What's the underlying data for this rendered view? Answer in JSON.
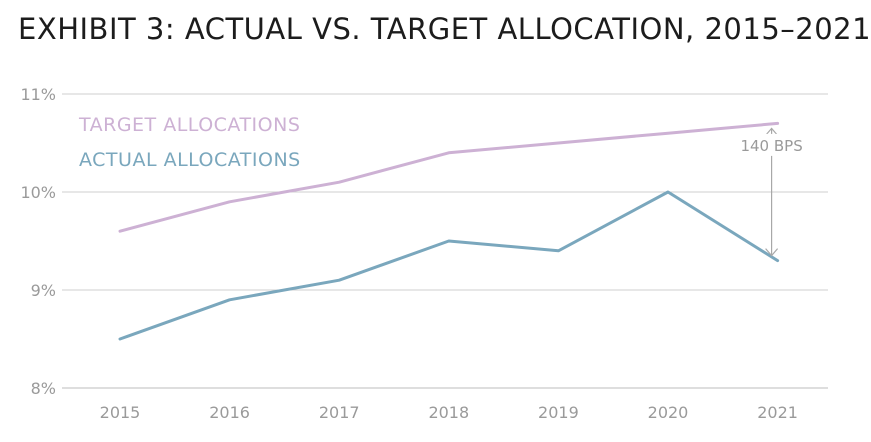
{
  "title": "EXHIBIT 3: ACTUAL VS. TARGET ALLOCATION, 2015–2021",
  "chart_data": {
    "type": "line",
    "x": [
      "2015",
      "2016",
      "2017",
      "2018",
      "2019",
      "2020",
      "2021"
    ],
    "series": [
      {
        "name": "TARGET ALLOCATIONS",
        "color": "#cdb1d4",
        "values": [
          9.6,
          9.9,
          10.1,
          10.4,
          10.5,
          10.6,
          10.7
        ]
      },
      {
        "name": "ACTUAL ALLOCATIONS",
        "color": "#7aa7bd",
        "values": [
          8.5,
          8.9,
          9.1,
          9.5,
          9.4,
          10.0,
          9.3
        ]
      }
    ],
    "ylim": [
      8,
      11
    ],
    "yticks": [
      "8%",
      "9%",
      "10%",
      "11%"
    ],
    "ytick_values": [
      8,
      9,
      10,
      11
    ],
    "grid": true,
    "legend": "top-left",
    "annotation": {
      "text": "140 BPS",
      "year": "2021",
      "from": 9.3,
      "to": 10.7
    }
  }
}
